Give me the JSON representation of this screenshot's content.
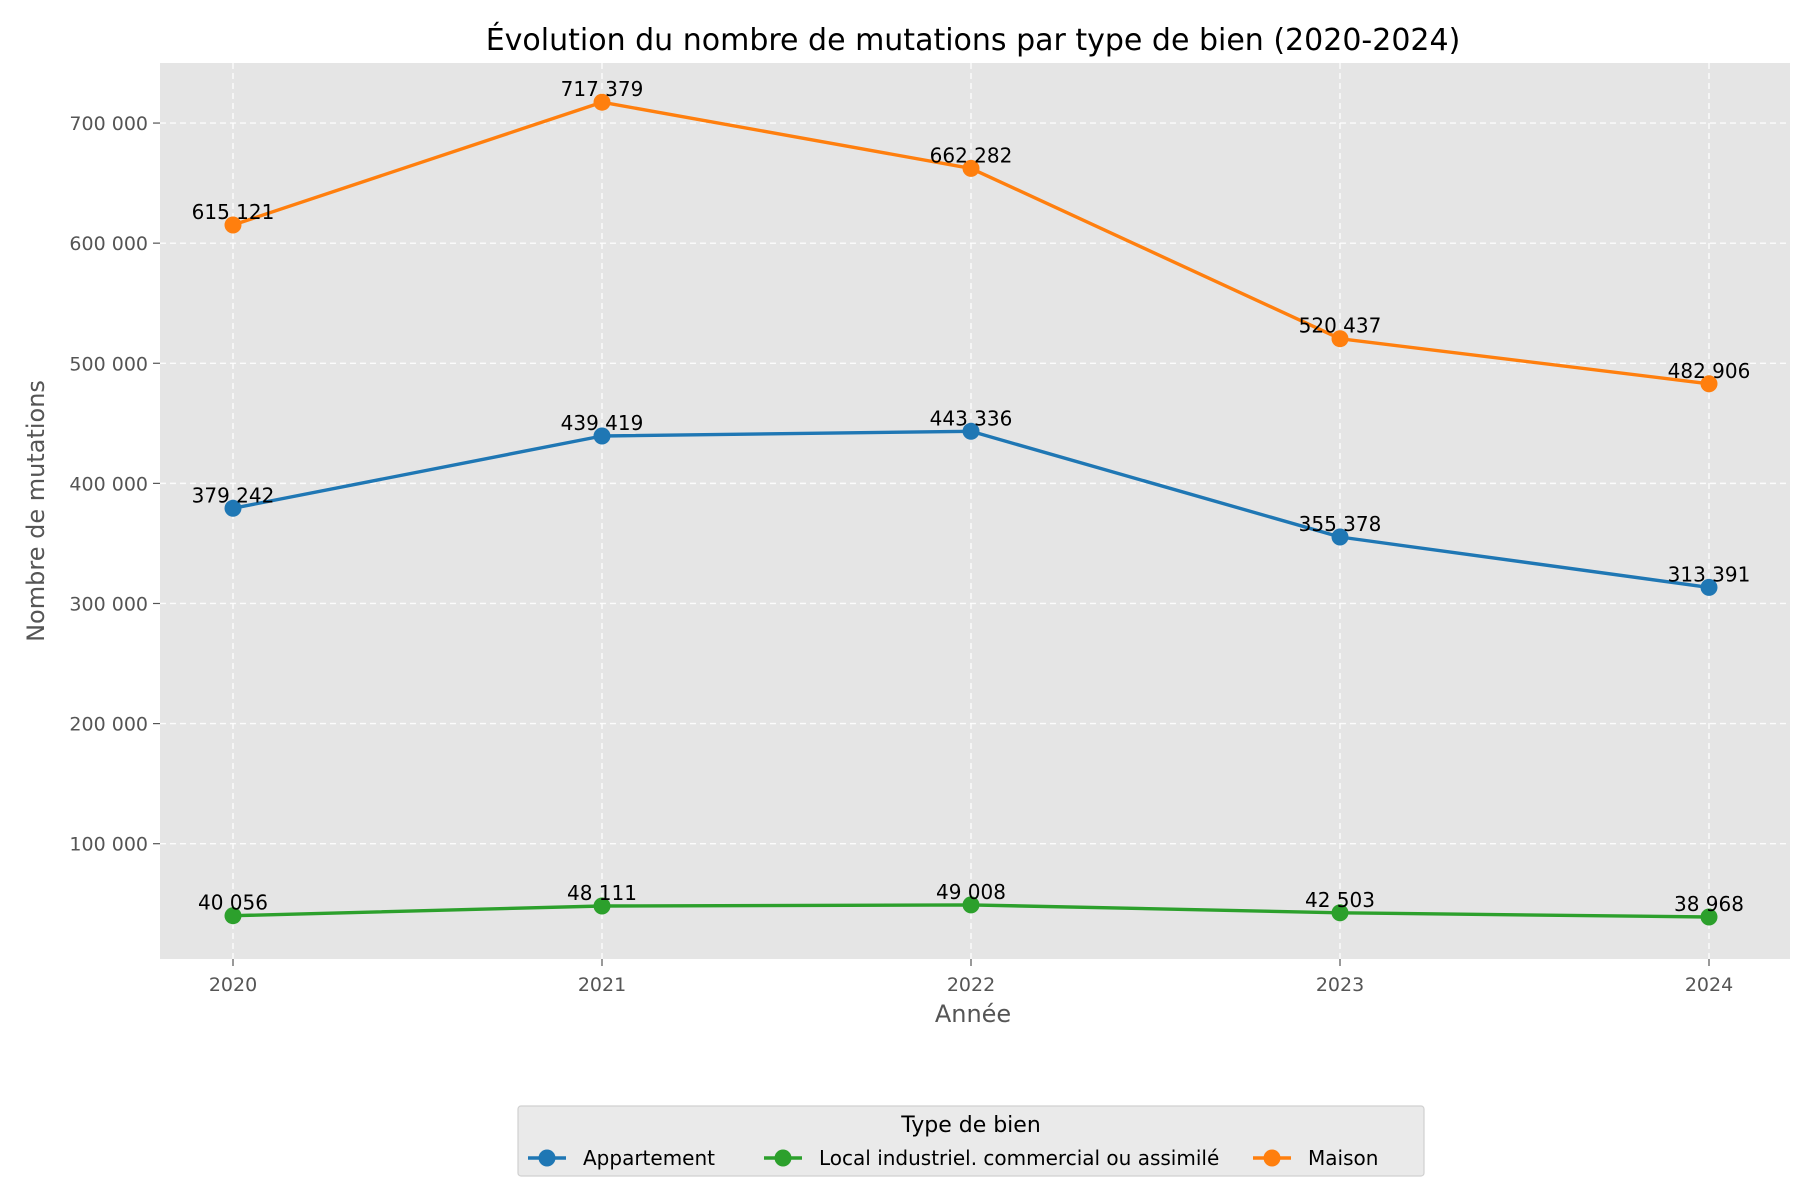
{
  "chart_data": {
    "type": "line",
    "title": "Évolution du nombre de mutations par type de bien (2020-2024)",
    "xlabel": "Année",
    "ylabel": "Nombre de mutations",
    "x": [
      2020,
      2021,
      2022,
      2023,
      2024
    ],
    "x_tick_labels": [
      "2020",
      "2021",
      "2022",
      "2023",
      "2024"
    ],
    "ylim": [
      4000,
      750000
    ],
    "y_ticks": [
      100000,
      200000,
      300000,
      400000,
      500000,
      600000,
      700000
    ],
    "y_tick_labels": [
      "100 000",
      "200 000",
      "300 000",
      "400 000",
      "500 000",
      "600 000",
      "700 000"
    ],
    "grid": true,
    "legend": {
      "title": "Type de bien",
      "placement": "bottom-center"
    },
    "series": [
      {
        "name": "Appartement",
        "color": "#1f77b4",
        "values": [
          379242,
          439419,
          443336,
          355378,
          313391
        ],
        "labels": [
          "379 242",
          "439 419",
          "443 336",
          "355 378",
          "313 391"
        ]
      },
      {
        "name": "Local industriel. commercial ou assimilé",
        "color": "#2ca02c",
        "values": [
          40056,
          48111,
          49008,
          42503,
          38968
        ],
        "labels": [
          "40 056",
          "48 111",
          "49 008",
          "42 503",
          "38 968"
        ]
      },
      {
        "name": "Maison",
        "color": "#ff7f0e",
        "values": [
          615121,
          717379,
          662282,
          520437,
          482906
        ],
        "labels": [
          "615 121",
          "717 379",
          "662 282",
          "520 437",
          "482 906"
        ]
      }
    ]
  }
}
